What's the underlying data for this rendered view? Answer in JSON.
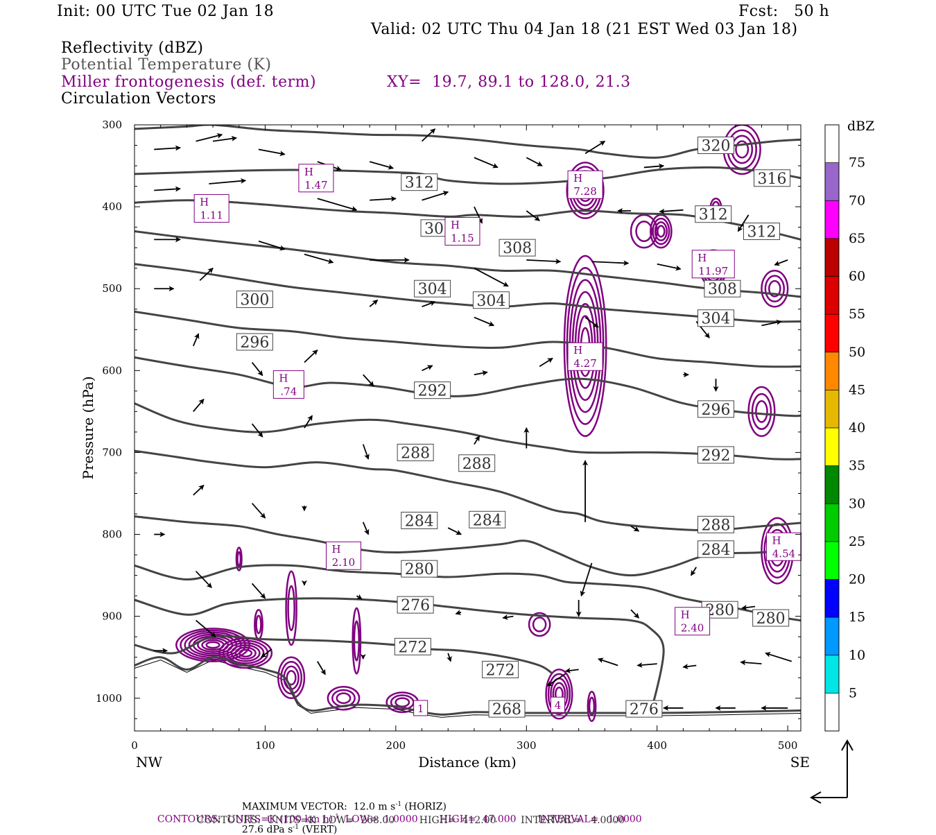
{
  "header": {
    "init": "Init: 00 UTC Tue 02 Jan 18",
    "fcst": "Fcst:   50 h",
    "valid": "Valid: 02 UTC Thu 04 Jan 18 (21 EST Wed 03 Jan 18)",
    "fields": [
      {
        "text": "Reflectivity (dBZ)",
        "color": "#000000"
      },
      {
        "text": "Potential Temperature (K)",
        "color": "#555555"
      },
      {
        "text": "Miller frontogenesis (def. term)",
        "color": "#800080"
      },
      {
        "text": "Circulation Vectors",
        "color": "#000000"
      }
    ],
    "xy": "XY=  19.7, 89.1 to 128.0, 21.3"
  },
  "chart_data": {
    "type": "cross-section",
    "xlabel": "Distance (km)",
    "ylabel": "Pressure (hPa)",
    "xlim": [
      0,
      510
    ],
    "ylim": [
      1040,
      300
    ],
    "x_ticks": [
      0,
      100,
      200,
      300,
      400,
      500
    ],
    "y_ticks": [
      300,
      400,
      500,
      600,
      700,
      800,
      900,
      1000
    ],
    "left_end": "NW",
    "right_end": "SE",
    "theta_contours": [
      {
        "label": "268",
        "points": [
          [
            0,
            960
          ],
          [
            20,
            950
          ],
          [
            40,
            965
          ],
          [
            60,
            950
          ],
          [
            80,
            958
          ],
          [
            100,
            965
          ],
          [
            115,
            975
          ],
          [
            125,
            1005
          ],
          [
            135,
            1015
          ],
          [
            150,
            1012
          ],
          [
            170,
            1008
          ],
          [
            200,
            1010
          ],
          [
            215,
            1015
          ],
          [
            235,
            1020
          ],
          [
            260,
            1017
          ],
          [
            300,
            1018
          ],
          [
            350,
            1018
          ],
          [
            400,
            1018
          ],
          [
            450,
            1017
          ],
          [
            510,
            1015
          ]
        ],
        "labels_at": [
          [
            285,
            1013
          ]
        ]
      },
      {
        "label": "272",
        "points": [
          [
            0,
            935
          ],
          [
            30,
            945
          ],
          [
            60,
            925
          ],
          [
            100,
            928
          ],
          [
            150,
            930
          ],
          [
            200,
            935
          ],
          [
            225,
            940
          ],
          [
            250,
            942
          ],
          [
            285,
            950
          ],
          [
            310,
            960
          ],
          [
            320,
            970
          ]
        ],
        "labels_at": [
          [
            213,
            937
          ],
          [
            280,
            965
          ]
        ]
      },
      {
        "label": "276",
        "points": [
          [
            0,
            880
          ],
          [
            40,
            898
          ],
          [
            70,
            885
          ],
          [
            100,
            880
          ],
          [
            140,
            878
          ],
          [
            180,
            880
          ],
          [
            220,
            885
          ],
          [
            260,
            892
          ],
          [
            300,
            898
          ],
          [
            340,
            902
          ],
          [
            380,
            905
          ],
          [
            395,
            915
          ],
          [
            405,
            940
          ],
          [
            398,
            1000
          ],
          [
            392,
            1018
          ]
        ],
        "labels_at": [
          [
            215,
            886
          ],
          [
            390,
            1013
          ]
        ]
      },
      {
        "label": "280",
        "points": [
          [
            0,
            838
          ],
          [
            40,
            855
          ],
          [
            80,
            840
          ],
          [
            120,
            838
          ],
          [
            160,
            845
          ],
          [
            200,
            848
          ],
          [
            240,
            852
          ],
          [
            280,
            848
          ],
          [
            310,
            850
          ],
          [
            330,
            858
          ],
          [
            350,
            860
          ],
          [
            390,
            865
          ],
          [
            420,
            878
          ],
          [
            460,
            890
          ],
          [
            490,
            900
          ],
          [
            510,
            905
          ]
        ],
        "labels_at": [
          [
            218,
            842
          ],
          [
            448,
            892
          ],
          [
            487,
            902
          ]
        ]
      },
      {
        "label": "284",
        "points": [
          [
            0,
            778
          ],
          [
            40,
            785
          ],
          [
            80,
            790
          ],
          [
            110,
            800
          ],
          [
            140,
            808
          ],
          [
            170,
            818
          ],
          [
            200,
            822
          ],
          [
            240,
            818
          ],
          [
            280,
            812
          ],
          [
            300,
            808
          ],
          [
            320,
            820
          ],
          [
            350,
            840
          ],
          [
            380,
            850
          ],
          [
            410,
            840
          ],
          [
            440,
            825
          ],
          [
            480,
            822
          ],
          [
            510,
            818
          ]
        ],
        "labels_at": [
          [
            218,
            783
          ],
          [
            270,
            782
          ],
          [
            445,
            818
          ]
        ]
      },
      {
        "label": "288",
        "points": [
          [
            0,
            698
          ],
          [
            30,
            705
          ],
          [
            60,
            712
          ],
          [
            100,
            718
          ],
          [
            140,
            712
          ],
          [
            180,
            720
          ],
          [
            200,
            722
          ],
          [
            240,
            735
          ],
          [
            280,
            748
          ],
          [
            320,
            770
          ],
          [
            340,
            775
          ],
          [
            360,
            785
          ],
          [
            400,
            792
          ],
          [
            440,
            795
          ],
          [
            480,
            790
          ],
          [
            510,
            786
          ]
        ],
        "labels_at": [
          [
            215,
            700
          ],
          [
            262,
            713
          ],
          [
            445,
            788
          ]
        ]
      },
      {
        "label": "292",
        "points": [
          [
            0,
            640
          ],
          [
            30,
            660
          ],
          [
            60,
            670
          ],
          [
            100,
            675
          ],
          [
            140,
            665
          ],
          [
            180,
            660
          ],
          [
            210,
            665
          ],
          [
            250,
            675
          ],
          [
            280,
            685
          ],
          [
            320,
            695
          ],
          [
            345,
            700
          ],
          [
            400,
            700
          ],
          [
            450,
            703
          ],
          [
            490,
            708
          ],
          [
            510,
            708
          ]
        ],
        "labels_at": [
          [
            228,
            624
          ],
          [
            445,
            703
          ]
        ]
      },
      {
        "label": "296",
        "points": [
          [
            0,
            584
          ],
          [
            40,
            595
          ],
          [
            80,
            605
          ],
          [
            120,
            620
          ],
          [
            150,
            615
          ],
          [
            190,
            620
          ],
          [
            230,
            630
          ],
          [
            260,
            630
          ],
          [
            300,
            618
          ],
          [
            340,
            610
          ],
          [
            380,
            620
          ],
          [
            420,
            640
          ],
          [
            460,
            650
          ],
          [
            500,
            655
          ],
          [
            510,
            655
          ]
        ],
        "labels_at": [
          [
            92,
            565
          ],
          [
            445,
            647
          ]
        ]
      },
      {
        "label": "300",
        "points": [
          [
            0,
            528
          ],
          [
            40,
            538
          ],
          [
            80,
            548
          ],
          [
            120,
            552
          ],
          [
            160,
            560
          ],
          [
            200,
            565
          ],
          [
            240,
            570
          ],
          [
            280,
            572
          ],
          [
            320,
            565
          ],
          [
            360,
            572
          ],
          [
            400,
            585
          ],
          [
            440,
            590
          ],
          [
            480,
            595
          ],
          [
            510,
            595
          ]
        ],
        "labels_at": [
          [
            92,
            513
          ]
        ]
      },
      {
        "label": "304",
        "points": [
          [
            0,
            470
          ],
          [
            40,
            478
          ],
          [
            80,
            488
          ],
          [
            120,
            498
          ],
          [
            160,
            505
          ],
          [
            200,
            512
          ],
          [
            240,
            518
          ],
          [
            280,
            522
          ],
          [
            320,
            518
          ],
          [
            360,
            525
          ],
          [
            400,
            530
          ],
          [
            440,
            535
          ],
          [
            480,
            540
          ],
          [
            510,
            540
          ]
        ],
        "labels_at": [
          [
            228,
            500
          ],
          [
            273,
            514
          ],
          [
            445,
            536
          ]
        ]
      },
      {
        "label": "308",
        "points": [
          [
            0,
            430
          ],
          [
            40,
            438
          ],
          [
            80,
            445
          ],
          [
            120,
            452
          ],
          [
            160,
            460
          ],
          [
            200,
            468
          ],
          [
            240,
            472
          ],
          [
            280,
            478
          ],
          [
            320,
            478
          ],
          [
            360,
            485
          ],
          [
            400,
            492
          ],
          [
            440,
            500
          ],
          [
            480,
            505
          ],
          [
            510,
            510
          ]
        ],
        "labels_at": [
          [
            233,
            426
          ],
          [
            293,
            450
          ],
          [
            450,
            500
          ]
        ]
      },
      {
        "label": "312",
        "points": [
          [
            0,
            395
          ],
          [
            40,
            392
          ],
          [
            80,
            395
          ],
          [
            120,
            400
          ],
          [
            160,
            405
          ],
          [
            200,
            408
          ],
          [
            240,
            412
          ],
          [
            260,
            410
          ],
          [
            300,
            412
          ],
          [
            340,
            405
          ],
          [
            380,
            408
          ],
          [
            420,
            410
          ],
          [
            450,
            418
          ],
          [
            480,
            428
          ],
          [
            510,
            440
          ]
        ],
        "labels_at": [
          [
            218,
            370
          ],
          [
            443,
            409
          ],
          [
            480,
            430
          ]
        ]
      },
      {
        "label": "316",
        "points": [
          [
            0,
            360
          ],
          [
            40,
            358
          ],
          [
            80,
            356
          ],
          [
            120,
            355
          ],
          [
            160,
            356
          ],
          [
            200,
            358
          ],
          [
            220,
            360
          ],
          [
            240,
            368
          ],
          [
            280,
            372
          ],
          [
            320,
            370
          ],
          [
            360,
            365
          ],
          [
            400,
            355
          ],
          [
            440,
            352
          ],
          [
            470,
            355
          ],
          [
            500,
            362
          ],
          [
            510,
            365
          ]
        ],
        "labels_at": [
          [
            488,
            365
          ]
        ]
      },
      {
        "label": "320",
        "points": [
          [
            0,
            305
          ],
          [
            40,
            302
          ],
          [
            60,
            300
          ],
          [
            100,
            306
          ],
          [
            140,
            309
          ],
          [
            180,
            312
          ],
          [
            220,
            313
          ],
          [
            260,
            318
          ],
          [
            300,
            325
          ],
          [
            340,
            330
          ],
          [
            360,
            335
          ],
          [
            400,
            340
          ],
          [
            430,
            330
          ],
          [
            460,
            325
          ],
          [
            490,
            320
          ],
          [
            510,
            318
          ]
        ],
        "labels_at": [
          [
            445,
            325
          ]
        ]
      }
    ],
    "frontogenesis_maxima": [
      {
        "label": "H",
        "value": "1.47",
        "x": 139,
        "p": 365
      },
      {
        "label": "H",
        "value": "1.11",
        "x": 59,
        "p": 402
      },
      {
        "label": "H",
        "value": "1.15",
        "x": 251,
        "p": 430
      },
      {
        "label": "H",
        "value": "7.28",
        "x": 345,
        "p": 373
      },
      {
        "label": "H",
        "value": "11.97",
        "x": 443,
        "p": 470
      },
      {
        "label": "H",
        "value": "4.27",
        "x": 345,
        "p": 583
      },
      {
        "label": "H",
        "value": ".74",
        "x": 118,
        "p": 617
      },
      {
        "label": "H",
        "value": "2.10",
        "x": 160,
        "p": 826
      },
      {
        "label": "H",
        "value": "4.54",
        "x": 497,
        "p": 815
      },
      {
        "label": "H",
        "value": "2.40",
        "x": 427,
        "p": 906
      }
    ],
    "frontogenesis_plain_labels": [
      {
        "value": "1",
        "x": 219,
        "p": 1012
      },
      {
        "value": "4",
        "x": 324,
        "p": 1008
      }
    ],
    "color_bar": {
      "unit": "dBZ",
      "levels": [
        "5",
        "10",
        "15",
        "20",
        "25",
        "30",
        "35",
        "40",
        "45",
        "50",
        "55",
        "60",
        "65",
        "70",
        "75"
      ],
      "colors": [
        "#ffffff",
        "#00e5e5",
        "#0099ff",
        "#0000ff",
        "#00ff00",
        "#00cc00",
        "#008800",
        "#ffff00",
        "#e6b800",
        "#ff8800",
        "#ff0000",
        "#dd0000",
        "#bb0000",
        "#ff00ff",
        "#9966cc",
        "#ffffff"
      ]
    }
  },
  "footer": {
    "line1_left": "MAXIMUM VECTOR:  12.0 m s",
    "line1_left_sup": "-1",
    "line1_mid": " (HORIZ)",
    "line1_right": "27.6 dPa s",
    "line1_right_sup": "-1",
    "line1_right_end": " (VERT)",
    "line2": "CONTOURS:  UNITS=K (100 km h)",
    "line2_sup": "-1",
    "line2_rest": "  LOW=  1.0000       HIGH=  47.000       INTERVAL=   1.0000",
    "line3": "CONTOURS:  UNITS=K  LOW=  268.00        HIGH=  412.00        INTERVAL=   4.0000"
  }
}
